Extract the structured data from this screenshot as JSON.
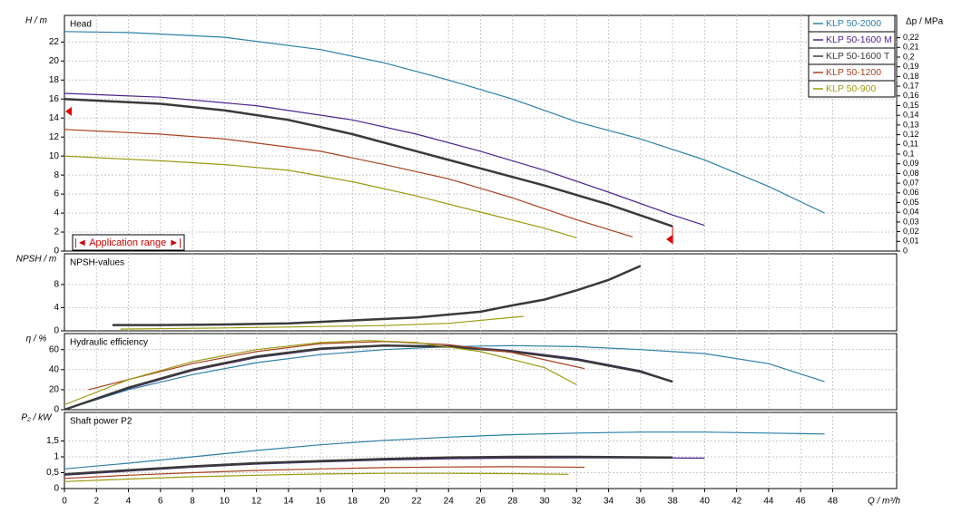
{
  "chart_data": [
    {
      "type": "line",
      "title": "Head",
      "y_label": "H / m",
      "y2_label": "Δp / MPa",
      "annotation": "|◄ Application range ►|",
      "xlim": [
        0,
        52
      ],
      "ylim": [
        0,
        24.8
      ],
      "yticks": [
        0,
        2,
        4,
        6,
        8,
        10,
        12,
        14,
        16,
        18,
        20,
        22
      ],
      "y2lim": [
        0,
        0.243
      ],
      "y2ticks": [
        0,
        {
          "value": 0.01,
          "label": "0,01"
        },
        {
          "value": 0.02,
          "label": "0,02"
        },
        {
          "value": 0.03,
          "label": "0,03"
        },
        {
          "value": 0.04,
          "label": "0,04"
        },
        {
          "value": 0.05,
          "label": "0,05"
        },
        {
          "value": 0.06,
          "label": "0,06"
        },
        {
          "value": 0.07,
          "label": "0,07"
        },
        {
          "value": 0.08,
          "label": "0,08"
        },
        {
          "value": 0.09,
          "label": "0,09"
        },
        {
          "value": 0.1,
          "label": "0,1"
        },
        {
          "value": 0.11,
          "label": "0,11"
        },
        {
          "value": 0.12,
          "label": "0,12"
        },
        {
          "value": 0.13,
          "label": "0,13"
        },
        {
          "value": 0.14,
          "label": "0,14"
        },
        {
          "value": 0.15,
          "label": "0,15"
        },
        {
          "value": 0.16,
          "label": "0,16"
        },
        {
          "value": 0.17,
          "label": "0,17"
        },
        {
          "value": 0.18,
          "label": "0,18"
        },
        {
          "value": 0.19,
          "label": "0,19"
        },
        {
          "value": 0.2,
          "label": "0,2"
        },
        {
          "value": 0.21,
          "label": "0,21"
        },
        {
          "value": 0.22,
          "label": "0,22"
        }
      ],
      "grid": true,
      "legend": "top-right",
      "series": [
        {
          "name": "KLP 50-2000",
          "color": "#2b7fa8",
          "x": [
            0,
            4,
            10,
            16,
            20,
            24,
            28,
            32,
            36,
            40,
            44,
            47.5
          ],
          "values": [
            23.1,
            23.0,
            22.5,
            21.2,
            19.8,
            18.0,
            16.0,
            13.6,
            11.8,
            9.6,
            6.8,
            4.0
          ]
        },
        {
          "name": "KLP 50-1600 M",
          "color": "#4b2391",
          "x": [
            0,
            6,
            12,
            18,
            22,
            26,
            30,
            34,
            38,
            40
          ],
          "values": [
            16.6,
            16.2,
            15.3,
            13.8,
            12.3,
            10.5,
            8.5,
            6.2,
            3.8,
            2.7
          ]
        },
        {
          "name": "KLP 50-1600 T",
          "color": "#3a3a3a",
          "width": 2.5,
          "x": [
            0,
            6,
            10,
            14,
            18,
            22,
            26,
            30,
            34,
            38
          ],
          "values": [
            16.0,
            15.5,
            14.8,
            13.8,
            12.3,
            10.5,
            8.7,
            6.9,
            4.9,
            2.6
          ]
        },
        {
          "name": "KLP 50-1200",
          "color": "#a8401e",
          "x": [
            0,
            6,
            10,
            16,
            20,
            24,
            28,
            32,
            35.5
          ],
          "values": [
            12.8,
            12.3,
            11.8,
            10.5,
            9.1,
            7.6,
            5.6,
            3.3,
            1.5
          ]
        },
        {
          "name": "KLP 50-900",
          "color": "#9a9a10",
          "x": [
            0,
            6,
            10,
            14,
            18,
            22,
            26,
            30,
            32
          ],
          "values": [
            10.0,
            9.5,
            9.1,
            8.5,
            7.3,
            5.8,
            4.1,
            2.4,
            1.4
          ]
        }
      ]
    },
    {
      "type": "line",
      "title": "NPSH-values",
      "y_label": "NPSH / m",
      "xlim": [
        0,
        52
      ],
      "ylim": [
        0,
        13.3
      ],
      "yticks": [
        0,
        4,
        8
      ],
      "grid": true,
      "series": [
        {
          "color": "#3a3a3a",
          "width": 2.5,
          "x": [
            3,
            6,
            10,
            14,
            18,
            22,
            26,
            28,
            30,
            32,
            34,
            36
          ],
          "values": [
            1.0,
            1.0,
            1.1,
            1.3,
            1.8,
            2.3,
            3.3,
            4.4,
            5.4,
            7.0,
            8.8,
            11.2
          ]
        },
        {
          "color": "#9a9a10",
          "x": [
            3.5,
            10,
            20,
            24,
            28.7
          ],
          "values": [
            0.3,
            0.5,
            0.9,
            1.3,
            2.5
          ]
        }
      ]
    },
    {
      "type": "line",
      "title": "Hydraulic efficiency",
      "y_label": "η / %",
      "xlim": [
        0,
        52
      ],
      "ylim": [
        0,
        76
      ],
      "yticks": [
        0,
        20,
        40,
        60
      ],
      "grid": true,
      "series": [
        {
          "color": "#2b7fa8",
          "x": [
            0,
            2,
            4,
            8,
            12,
            16,
            20,
            24,
            28,
            32,
            36,
            40,
            44,
            47.5
          ],
          "values": [
            0,
            10,
            20,
            35,
            47,
            55,
            60,
            63,
            64,
            63,
            60,
            56,
            46,
            28
          ]
        },
        {
          "color": "#4b2391",
          "x": [
            0,
            4,
            8,
            12,
            16,
            20,
            24,
            28,
            32,
            36,
            38
          ],
          "values": [
            0,
            21,
            39,
            52,
            60,
            64,
            64,
            59,
            51,
            39,
            28
          ]
        },
        {
          "color": "#3a3a3a",
          "width": 2.5,
          "x": [
            0,
            4,
            8,
            12,
            16,
            20,
            24,
            28,
            32,
            36,
            38
          ],
          "values": [
            0,
            22,
            40,
            53,
            61,
            64,
            63,
            58,
            50,
            38,
            28
          ]
        },
        {
          "color": "#a8401e",
          "x": [
            1.5,
            4,
            8,
            12,
            16,
            20,
            24,
            28,
            32.5
          ],
          "values": [
            20,
            30,
            46,
            58,
            66,
            68,
            65,
            57,
            41
          ]
        },
        {
          "color": "#9a9a10",
          "x": [
            0,
            4,
            8,
            12,
            16,
            19,
            22,
            26,
            30,
            32
          ],
          "values": [
            5,
            30,
            48,
            60,
            67,
            69,
            67,
            58,
            42,
            25
          ]
        }
      ]
    },
    {
      "type": "line",
      "title": "Shaft power P2",
      "y_label": "P₂ / kW",
      "x_label": "Q / m³/h",
      "xlim": [
        0,
        52
      ],
      "ylim": [
        0,
        2.4
      ],
      "yticks": [
        0,
        {
          "value": 0.5,
          "label": "0,5"
        },
        1,
        {
          "value": 1.5,
          "label": "1,5"
        }
      ],
      "xticks": [
        0,
        2,
        4,
        6,
        8,
        10,
        12,
        14,
        16,
        18,
        20,
        22,
        24,
        26,
        28,
        30,
        32,
        34,
        36,
        38,
        40,
        42,
        44,
        46,
        48
      ],
      "grid": true,
      "series": [
        {
          "color": "#2b7fa8",
          "x": [
            0,
            4,
            8,
            12,
            16,
            20,
            24,
            28,
            32,
            36,
            40,
            44,
            47.5
          ],
          "values": [
            0.62,
            0.8,
            1.0,
            1.2,
            1.38,
            1.52,
            1.62,
            1.7,
            1.75,
            1.78,
            1.78,
            1.75,
            1.72
          ]
        },
        {
          "color": "#4b2391",
          "x": [
            0,
            4,
            8,
            12,
            16,
            20,
            24,
            28,
            32,
            36,
            40
          ],
          "values": [
            0.42,
            0.55,
            0.67,
            0.77,
            0.84,
            0.9,
            0.94,
            0.96,
            0.97,
            0.97,
            0.96
          ]
        },
        {
          "color": "#3a3a3a",
          "width": 2.5,
          "x": [
            0,
            4,
            8,
            12,
            16,
            20,
            24,
            28,
            32,
            38
          ],
          "values": [
            0.45,
            0.58,
            0.7,
            0.8,
            0.87,
            0.93,
            0.98,
            1.0,
            1.0,
            0.98
          ]
        },
        {
          "color": "#a8401e",
          "x": [
            0,
            4,
            8,
            12,
            16,
            20,
            24,
            28,
            32.5
          ],
          "values": [
            0.32,
            0.42,
            0.5,
            0.57,
            0.62,
            0.66,
            0.68,
            0.69,
            0.67
          ]
        },
        {
          "color": "#9a9a10",
          "x": [
            0,
            4,
            8,
            12,
            16,
            20,
            24,
            28,
            31.5
          ],
          "values": [
            0.22,
            0.3,
            0.37,
            0.42,
            0.46,
            0.48,
            0.48,
            0.47,
            0.45
          ]
        }
      ]
    }
  ]
}
